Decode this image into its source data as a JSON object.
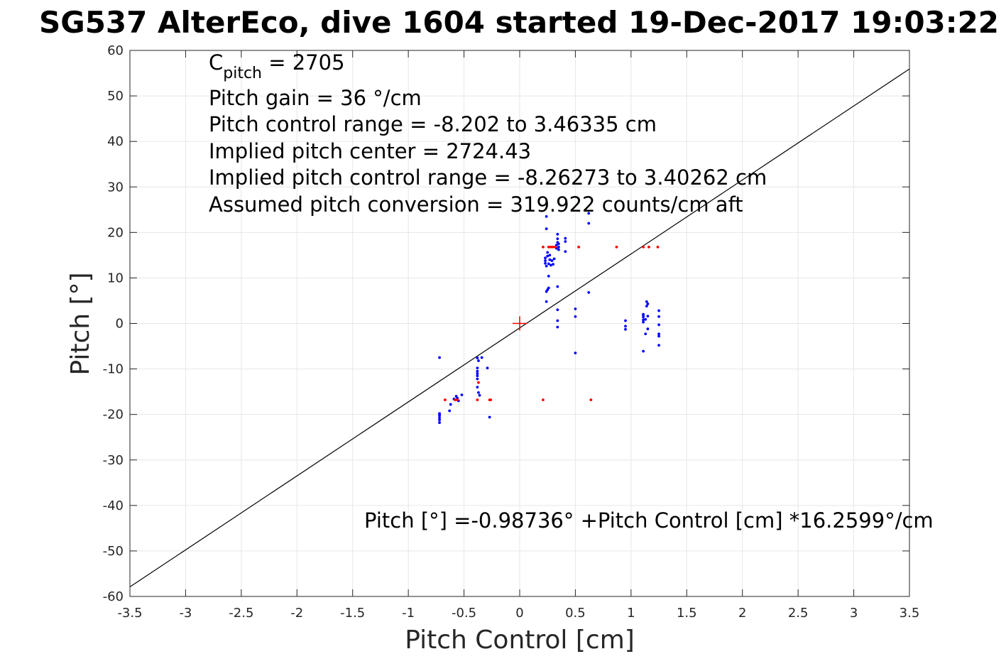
{
  "chart_data": {
    "type": "scatter",
    "title": "SG537 AlterEco, dive 1604 started 19-Dec-2017 19:03:22",
    "xlabel": "Pitch Control [cm]",
    "ylabel": "Pitch [°]",
    "xlim": [
      -3.5,
      3.5
    ],
    "ylim": [
      -60,
      60
    ],
    "grid": true,
    "x_ticks": [
      -3.5,
      -3,
      -2.5,
      -2,
      -1.5,
      -1,
      -0.5,
      0,
      0.5,
      1,
      1.5,
      2,
      2.5,
      3,
      3.5
    ],
    "x_tick_labels": [
      "-3.5",
      "-3",
      "-2.5",
      "-2",
      "-1.5",
      "-1",
      "-0.5",
      "0",
      "0.5",
      "1",
      "1.5",
      "2",
      "2.5",
      "3",
      "3.5"
    ],
    "y_ticks": [
      -60,
      -50,
      -40,
      -30,
      -20,
      -10,
      0,
      10,
      20,
      30,
      40,
      50,
      60
    ],
    "y_tick_labels": [
      "-60",
      "-50",
      "-40",
      "-30",
      "-20",
      "-10",
      "0",
      "10",
      "20",
      "30",
      "40",
      "50",
      "60"
    ],
    "annotations": {
      "c_pitch_prefix": "C",
      "c_pitch_sub": "pitch",
      "c_pitch_value": " = 2705",
      "pitch_gain": "Pitch gain = 36 °/cm",
      "control_range": "Pitch control range = -8.202 to 3.46335 cm",
      "implied_center": "Implied pitch center = 2724.43",
      "implied_range": "Implied pitch control range = -8.26273 to 3.40262 cm",
      "assumed_conversion": "Assumed pitch conversion = 319.922 counts/cm aft",
      "fit_equation": "Pitch [°] =-0.98736° +Pitch Control [cm] *16.2599°/cm"
    },
    "fit_line": {
      "intercept": -0.98736,
      "slope": 16.2599,
      "color": "#000000"
    },
    "center_marker": {
      "x": 0,
      "y": 0,
      "color": "#ff0000"
    },
    "series": [
      {
        "color": "#0000ff",
        "points": [
          [
            -0.72,
            -7.5
          ],
          [
            -0.72,
            -19.8
          ],
          [
            -0.72,
            -20.3
          ],
          [
            -0.72,
            -20.8
          ],
          [
            -0.72,
            -21.2
          ],
          [
            -0.72,
            -21.8
          ],
          [
            -0.72,
            -20.0
          ],
          [
            -0.63,
            -19.2
          ],
          [
            -0.62,
            -17.8
          ],
          [
            -0.59,
            -16.6
          ],
          [
            -0.57,
            -16.0
          ],
          [
            -0.56,
            -16.4
          ],
          [
            -0.55,
            -17.0
          ],
          [
            -0.52,
            -15.7
          ],
          [
            -0.38,
            -7.6
          ],
          [
            -0.38,
            -9.8
          ],
          [
            -0.38,
            -10.5
          ],
          [
            -0.38,
            -11.0
          ],
          [
            -0.38,
            -11.5
          ],
          [
            -0.38,
            -12.2
          ],
          [
            -0.38,
            -14.0
          ],
          [
            -0.37,
            -15.2
          ],
          [
            -0.36,
            -15.8
          ],
          [
            -0.37,
            -8.2
          ],
          [
            -0.34,
            -7.5
          ],
          [
            -0.29,
            -9.8
          ],
          [
            -0.27,
            -20.6
          ],
          [
            0.23,
            13.8
          ],
          [
            0.23,
            14.4
          ],
          [
            0.23,
            13.2
          ],
          [
            0.24,
            12.6
          ],
          [
            0.24,
            23.5
          ],
          [
            0.24,
            20.8
          ],
          [
            0.24,
            7.0
          ],
          [
            0.24,
            4.8
          ],
          [
            0.25,
            7.4
          ],
          [
            0.25,
            14.8
          ],
          [
            0.25,
            15.6
          ],
          [
            0.26,
            13.1
          ],
          [
            0.26,
            7.8
          ],
          [
            0.26,
            10.4
          ],
          [
            0.27,
            14.0
          ],
          [
            0.27,
            15.0
          ],
          [
            0.28,
            12.8
          ],
          [
            0.29,
            13.8
          ],
          [
            0.3,
            13.0
          ],
          [
            0.31,
            14.2
          ],
          [
            0.33,
            16.5
          ],
          [
            0.33,
            17.2
          ],
          [
            0.34,
            17.8
          ],
          [
            0.34,
            18.6
          ],
          [
            0.34,
            19.6
          ],
          [
            0.35,
            16.2
          ],
          [
            0.35,
            16.8
          ],
          [
            0.35,
            17.5
          ],
          [
            0.34,
            3.0
          ],
          [
            0.34,
            8.1
          ],
          [
            0.34,
            0.6
          ],
          [
            0.34,
            -0.8
          ],
          [
            0.41,
            15.8
          ],
          [
            0.41,
            18.0
          ],
          [
            0.41,
            18.7
          ],
          [
            0.5,
            3.2
          ],
          [
            0.5,
            1.5
          ],
          [
            0.5,
            -6.5
          ],
          [
            0.62,
            24.2
          ],
          [
            0.62,
            22.0
          ],
          [
            0.62,
            6.8
          ],
          [
            0.95,
            0.6
          ],
          [
            0.95,
            -0.6
          ],
          [
            0.95,
            -1.3
          ],
          [
            1.11,
            -6.1
          ],
          [
            1.11,
            2.0
          ],
          [
            1.11,
            1.4
          ],
          [
            1.11,
            0.8
          ],
          [
            1.11,
            0.3
          ],
          [
            1.11,
            1.8
          ],
          [
            1.13,
            -2.3
          ],
          [
            1.13,
            0.9
          ],
          [
            1.14,
            4.8
          ],
          [
            1.14,
            3.8
          ],
          [
            1.15,
            4.3
          ],
          [
            1.15,
            1.6
          ],
          [
            1.15,
            -1.2
          ],
          [
            1.25,
            2.8
          ],
          [
            1.25,
            1.5
          ],
          [
            1.25,
            -0.3
          ],
          [
            1.25,
            -2.3
          ],
          [
            1.25,
            -2.8
          ],
          [
            1.25,
            -4.8
          ]
        ]
      },
      {
        "color": "#ff0000",
        "points": [
          [
            -0.67,
            -16.8
          ],
          [
            -0.58,
            -16.8
          ],
          [
            -0.56,
            -16.8
          ],
          [
            -0.37,
            -13.0
          ],
          [
            -0.38,
            -16.8
          ],
          [
            -0.27,
            -16.8
          ],
          [
            -0.26,
            -16.8
          ],
          [
            0.21,
            -16.8
          ],
          [
            0.64,
            -16.8
          ],
          [
            0.21,
            16.8
          ],
          [
            0.26,
            16.8
          ],
          [
            0.28,
            16.8
          ],
          [
            0.3,
            16.8
          ],
          [
            0.32,
            16.8
          ],
          [
            0.53,
            16.8
          ],
          [
            0.87,
            16.8
          ],
          [
            1.11,
            16.8
          ],
          [
            1.16,
            16.8
          ],
          [
            1.24,
            16.8
          ]
        ]
      }
    ]
  }
}
